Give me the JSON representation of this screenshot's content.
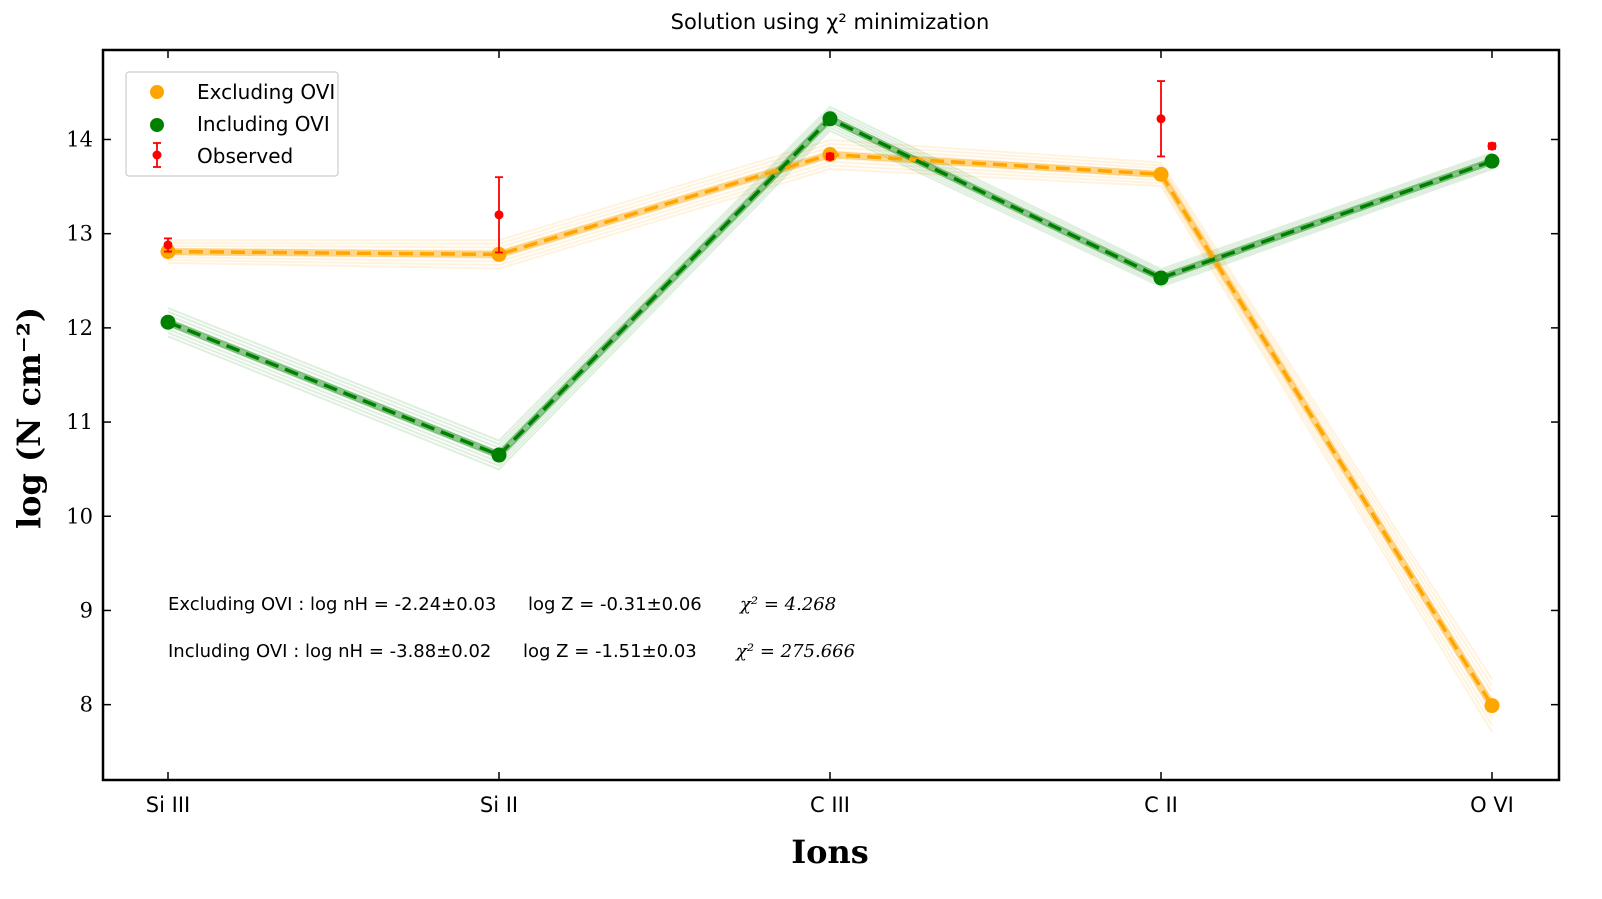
{
  "chart_data": {
    "type": "line",
    "title": "Solution using χ² minimization",
    "xlabel": "Ions",
    "ylabel": "log (N cm⁻²)",
    "categories": [
      "Si III",
      "Si II",
      "C III",
      "C II",
      "O VI"
    ],
    "ylim": [
      7.2,
      14.95
    ],
    "yticks": [
      8,
      9,
      10,
      11,
      12,
      13,
      14
    ],
    "grid": false,
    "legend_position": "top-left",
    "series": [
      {
        "name": "Excluding OVI",
        "color": "#FFA500",
        "style": "dashed-with-markers",
        "values": [
          12.81,
          12.78,
          13.84,
          13.63,
          7.99
        ]
      },
      {
        "name": "Including OVI",
        "color": "#008000",
        "style": "dashed-with-markers",
        "values": [
          12.06,
          10.65,
          14.22,
          12.53,
          13.77
        ]
      },
      {
        "name": "Observed",
        "color": "#FF0000",
        "style": "errorbar",
        "values": [
          12.88,
          13.2,
          13.82,
          14.22,
          13.93
        ],
        "errors": [
          0.07,
          0.4,
          0.03,
          0.4,
          0.03
        ]
      }
    ],
    "annotations": [
      {
        "label": "Excluding OVI : log nH = -2.24±0.03",
        "logZ": "log Z = -0.31±0.06",
        "chi2": "χ² = 4.268"
      },
      {
        "label": "Including OVI : log nH = -3.88±0.02",
        "logZ": "log Z = -1.51±0.03",
        "chi2": "χ² = 275.666"
      }
    ]
  }
}
